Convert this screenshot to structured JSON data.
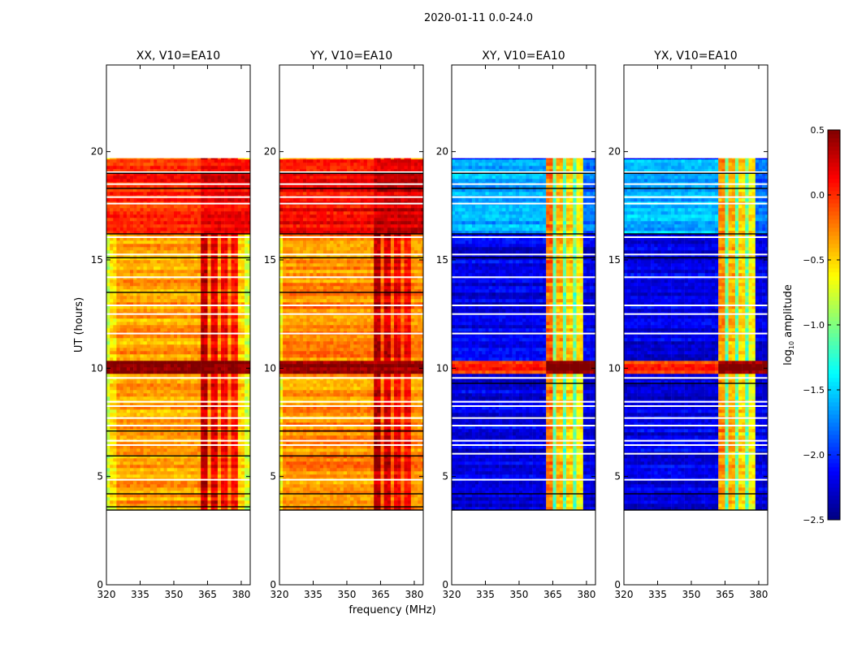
{
  "chart_data": {
    "type": "heatmap",
    "title": "2020-01-11 0.0-24.0",
    "xlabel": "frequency (MHz)",
    "ylabel": "UT (hours)",
    "xlim": [
      320,
      384
    ],
    "ylim": [
      0,
      24
    ],
    "xticks": [
      "320",
      "335",
      "350",
      "365",
      "380"
    ],
    "xtick_values": [
      320,
      335,
      350,
      365,
      380
    ],
    "yticks": [
      "0",
      "5",
      "10",
      "15",
      "20"
    ],
    "ytick_values": [
      0,
      5,
      10,
      15,
      20
    ],
    "data_time_range": [
      3.45,
      19.7
    ],
    "colorbar": {
      "label_prefix": "log",
      "label_sub": "10",
      "label_suffix": " amplitude",
      "colormap": "jet",
      "range": [
        -2.5,
        0.5
      ],
      "ticks": [
        "0.5",
        "0.0",
        "−0.5",
        "−1.0",
        "−1.5",
        "−2.0",
        "−2.5"
      ],
      "tick_values": [
        0.5,
        0.0,
        -0.5,
        -1.0,
        -1.5,
        -2.0,
        -2.5
      ]
    },
    "panels": [
      {
        "title": "XX, V10=EA10",
        "profile": [
          [
            320,
            322,
            -0.8
          ],
          [
            322,
            325,
            -0.55
          ],
          [
            325,
            362,
            -0.35
          ],
          [
            362,
            365.5,
            0.3
          ],
          [
            365.5,
            366.5,
            -0.3
          ],
          [
            366.5,
            370,
            0.2
          ],
          [
            370,
            371,
            -0.3
          ],
          [
            371,
            374.5,
            0.1
          ],
          [
            374.5,
            375.5,
            -0.3
          ],
          [
            375.5,
            379,
            0.05
          ],
          [
            379,
            381,
            -0.5
          ],
          [
            381,
            384,
            -0.75
          ]
        ],
        "overrides": [
          [
            16.2,
            19.7,
            320,
            362,
            0.05
          ],
          [
            16.2,
            19.7,
            362,
            384,
            0.2
          ],
          [
            9.7,
            10.3,
            320,
            384,
            0.5
          ]
        ],
        "white_rows": [
          19.05,
          18.5,
          17.9,
          17.6,
          16.05,
          15.25,
          14.2,
          12.9,
          12.5,
          11.6,
          9.55,
          8.45,
          8.25,
          7.7,
          7.35,
          6.65,
          6.45,
          4.85
        ],
        "black_rows": [
          19.0,
          18.3,
          16.2,
          15.1,
          13.5,
          7.1,
          5.95,
          4.2,
          3.6,
          3.45
        ]
      },
      {
        "title": "YY, V10=EA10",
        "profile": [
          [
            320,
            322,
            -0.6
          ],
          [
            322,
            362,
            -0.3
          ],
          [
            362,
            365.5,
            0.35
          ],
          [
            365.5,
            366.5,
            -0.2
          ],
          [
            366.5,
            370,
            0.25
          ],
          [
            370,
            371,
            -0.2
          ],
          [
            371,
            374.5,
            0.15
          ],
          [
            374.5,
            375.5,
            -0.2
          ],
          [
            375.5,
            379,
            0.1
          ],
          [
            379,
            384,
            -0.3
          ]
        ],
        "overrides": [
          [
            16.2,
            19.7,
            320,
            362,
            0.1
          ],
          [
            16.2,
            19.7,
            362,
            384,
            0.25
          ],
          [
            9.7,
            10.3,
            320,
            384,
            0.5
          ]
        ],
        "white_rows": [
          19.05,
          18.5,
          17.9,
          17.6,
          16.05,
          15.25,
          14.2,
          12.9,
          12.5,
          11.6,
          9.55,
          8.45,
          8.25,
          7.7,
          7.35,
          6.65,
          6.45,
          4.85
        ],
        "black_rows": [
          19.0,
          18.3,
          16.2,
          15.1,
          13.5,
          7.1,
          5.95,
          4.2,
          3.6,
          3.45
        ]
      },
      {
        "title": "XY, V10=EA10",
        "profile": [
          [
            320,
            334.6,
            -2.2
          ],
          [
            334.6,
            335.4,
            -1.2
          ],
          [
            335.4,
            362,
            -2.2
          ],
          [
            362,
            365.5,
            -0.2
          ],
          [
            365.5,
            366.5,
            -1.1
          ],
          [
            366.5,
            370,
            -0.4
          ],
          [
            370,
            371,
            -1.1
          ],
          [
            371,
            374.5,
            -0.5
          ],
          [
            374.5,
            375.5,
            -1.1
          ],
          [
            375.5,
            379,
            -0.6
          ],
          [
            379,
            384,
            -2.2
          ]
        ],
        "overrides": [
          [
            16.2,
            19.7,
            320,
            362,
            -1.6
          ],
          [
            16.2,
            19.7,
            379,
            384,
            -1.8
          ],
          [
            9.7,
            10.3,
            320,
            362,
            0.0
          ],
          [
            9.7,
            10.3,
            362,
            384,
            0.5
          ]
        ],
        "white_rows": [
          19.05,
          18.5,
          17.9,
          17.6,
          16.05,
          15.25,
          14.2,
          12.9,
          12.5,
          11.6,
          9.55,
          8.45,
          8.25,
          7.7,
          7.35,
          6.65,
          6.45,
          6.05,
          4.85
        ],
        "black_rows": [
          19.0,
          18.3,
          16.2,
          15.1,
          9.3,
          4.2,
          3.45
        ]
      },
      {
        "title": "YX, V10=EA10",
        "profile": [
          [
            320,
            334.6,
            -2.2
          ],
          [
            334.6,
            335.4,
            -1.2
          ],
          [
            335.4,
            362,
            -2.2
          ],
          [
            362,
            365.5,
            -0.3
          ],
          [
            365.5,
            366.5,
            -1.1
          ],
          [
            366.5,
            370,
            -0.4
          ],
          [
            370,
            371,
            -1.1
          ],
          [
            371,
            374.5,
            -0.5
          ],
          [
            374.5,
            375.5,
            -1.1
          ],
          [
            375.5,
            379,
            -0.6
          ],
          [
            379,
            384,
            -2.2
          ]
        ],
        "overrides": [
          [
            16.2,
            19.7,
            320,
            362,
            -1.6
          ],
          [
            16.2,
            19.7,
            379,
            384,
            -1.8
          ],
          [
            9.7,
            10.3,
            320,
            362,
            0.0
          ],
          [
            9.7,
            10.3,
            362,
            384,
            0.5
          ]
        ],
        "white_rows": [
          19.05,
          18.5,
          17.9,
          17.6,
          16.05,
          15.25,
          14.2,
          12.9,
          12.5,
          11.6,
          9.55,
          8.45,
          8.25,
          7.7,
          7.35,
          6.65,
          6.45,
          6.05,
          4.85
        ],
        "black_rows": [
          19.0,
          18.3,
          16.2,
          15.1,
          9.3,
          4.2,
          3.45
        ]
      }
    ]
  }
}
